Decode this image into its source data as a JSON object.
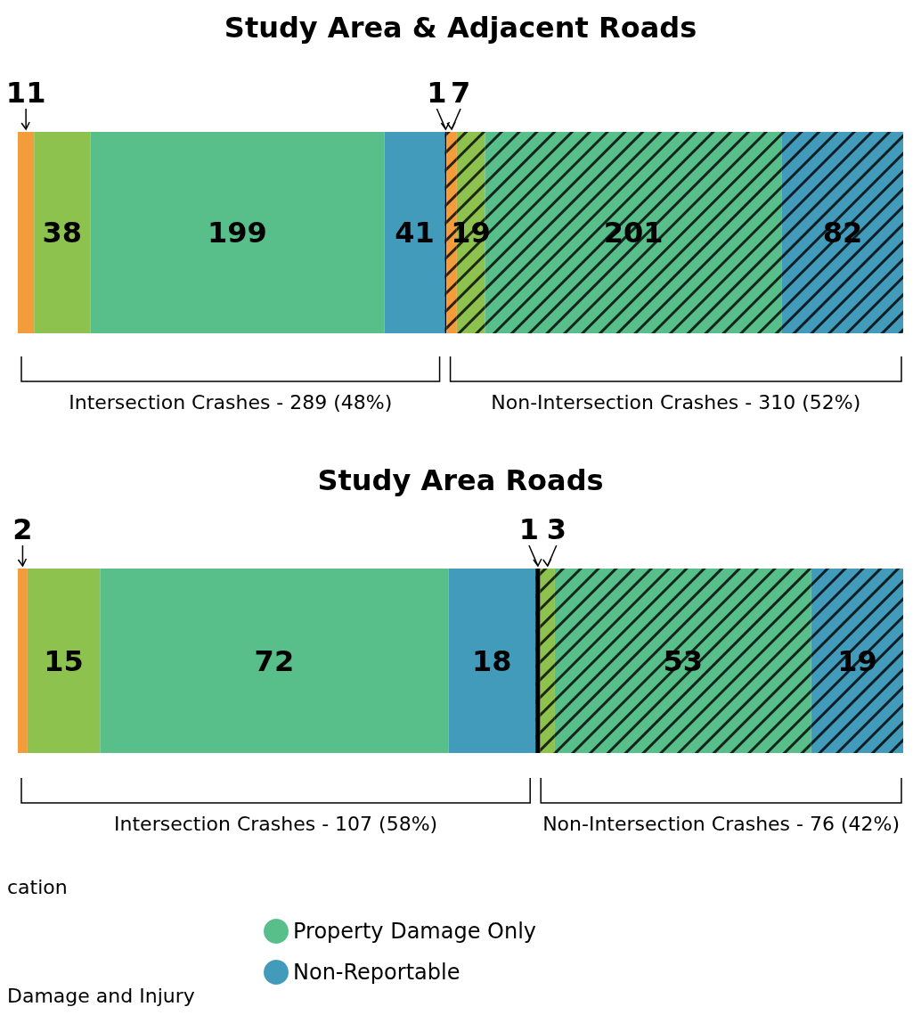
{
  "chart_data": [
    {
      "type": "bar",
      "orientation": "horizontal",
      "stacked": true,
      "title": "Study Area & Adjacent Roads",
      "categories": [
        null
      ],
      "tick_labels": false,
      "data_labels": true,
      "annotations": [
        "Intersection Crashes - 289 (48%)",
        "Non-Intersection Crashes - 310 (52%)"
      ],
      "series": [
        {
          "color": "#f39c3c",
          "values": [
            11
          ]
        },
        {
          "color": "#8dc24e",
          "values": [
            38
          ]
        },
        {
          "color": "#58be8a",
          "values": [
            199
          ]
        },
        {
          "color": "#429bbb",
          "values": [
            41
          ]
        },
        {
          "color": "#000000",
          "values": [
            1
          ]
        },
        {
          "color": "#f39c3c",
          "values": [
            7
          ]
        },
        {
          "color": "#8dc24e",
          "values": [
            19
          ]
        },
        {
          "color": "#58be8a",
          "values": [
            201
          ]
        },
        {
          "color": "#429bbb",
          "values": [
            82
          ]
        }
      ]
    },
    {
      "type": "bar",
      "orientation": "horizontal",
      "stacked": true,
      "title": "Study Area Roads",
      "categories": [
        null
      ],
      "tick_labels": false,
      "data_labels": true,
      "legend": "bottom",
      "annotations": [
        "Intersection Crashes - 107 (58%)",
        "Non-Intersection Crashes - 76 (42%)",
        "cation",
        "Damage and Injury"
      ],
      "series": [
        {
          "color": "#f39c3c",
          "values": [
            2
          ]
        },
        {
          "color": "#8dc24e",
          "values": [
            15
          ]
        },
        {
          "name": "Property Damage Only",
          "color": "#58be8a",
          "values": [
            72
          ]
        },
        {
          "name": "Non-Reportable",
          "color": "#429bbb",
          "values": [
            18
          ]
        },
        {
          "color": "#000000",
          "values": [
            1
          ]
        },
        {
          "color": "#8dc24e",
          "values": [
            3
          ]
        },
        {
          "color": "#58be8a",
          "values": [
            53
          ]
        },
        {
          "color": "#429bbb",
          "values": [
            19
          ]
        }
      ]
    }
  ]
}
